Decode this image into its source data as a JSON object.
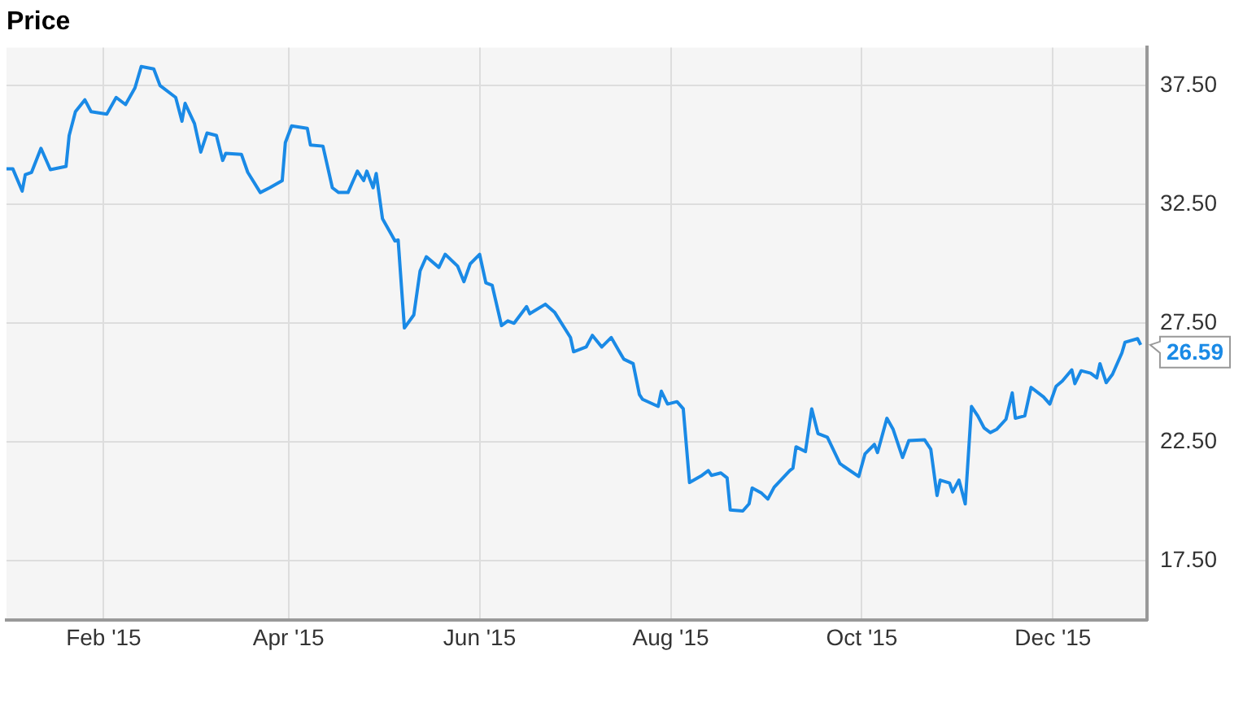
{
  "chart_data": {
    "type": "line",
    "title": "Price",
    "x": [
      "2015-01-01",
      "2015-01-03",
      "2015-01-06",
      "2015-01-07",
      "2015-01-09",
      "2015-01-12",
      "2015-01-15",
      "2015-01-20",
      "2015-01-21",
      "2015-01-23",
      "2015-01-26",
      "2015-01-28",
      "2015-02-02",
      "2015-02-05",
      "2015-02-08",
      "2015-02-11",
      "2015-02-13",
      "2015-02-17",
      "2015-02-19",
      "2015-02-24",
      "2015-02-26",
      "2015-02-27",
      "2015-03-02",
      "2015-03-04",
      "2015-03-06",
      "2015-03-09",
      "2015-03-11",
      "2015-03-12",
      "2015-03-17",
      "2015-03-19",
      "2015-03-23",
      "2015-03-26",
      "2015-03-30",
      "2015-03-31",
      "2015-04-02",
      "2015-04-07",
      "2015-04-08",
      "2015-04-12",
      "2015-04-15",
      "2015-04-17",
      "2015-04-20",
      "2015-04-23",
      "2015-04-25",
      "2015-04-26",
      "2015-04-28",
      "2015-04-29",
      "2015-05-01",
      "2015-05-04",
      "2015-05-05",
      "2015-05-06",
      "2015-05-08",
      "2015-05-11",
      "2015-05-13",
      "2015-05-15",
      "2015-05-19",
      "2015-05-21",
      "2015-05-25",
      "2015-05-27",
      "2015-05-29",
      "2015-06-01",
      "2015-06-03",
      "2015-06-05",
      "2015-06-08",
      "2015-06-10",
      "2015-06-12",
      "2015-06-16",
      "2015-06-17",
      "2015-06-22",
      "2015-06-25",
      "2015-06-30",
      "2015-07-01",
      "2015-07-05",
      "2015-07-07",
      "2015-07-10",
      "2015-07-13",
      "2015-07-17",
      "2015-07-20",
      "2015-07-22",
      "2015-07-23",
      "2015-07-28",
      "2015-07-29",
      "2015-07-31",
      "2015-08-03",
      "2015-08-05",
      "2015-08-07",
      "2015-08-11",
      "2015-08-13",
      "2015-08-14",
      "2015-08-17",
      "2015-08-19",
      "2015-08-20",
      "2015-08-24",
      "2015-08-26",
      "2015-08-27",
      "2015-08-30",
      "2015-09-01",
      "2015-09-03",
      "2015-09-08",
      "2015-09-09",
      "2015-09-10",
      "2015-09-13",
      "2015-09-15",
      "2015-09-17",
      "2015-09-20",
      "2015-09-24",
      "2015-09-25",
      "2015-09-30",
      "2015-10-02",
      "2015-10-05",
      "2015-10-06",
      "2015-10-09",
      "2015-10-11",
      "2015-10-14",
      "2015-10-16",
      "2015-10-21",
      "2015-10-23",
      "2015-10-25",
      "2015-10-26",
      "2015-10-29",
      "2015-10-30",
      "2015-11-01",
      "2015-11-03",
      "2015-11-05",
      "2015-11-07",
      "2015-11-09",
      "2015-11-11",
      "2015-11-13",
      "2015-11-16",
      "2015-11-18",
      "2015-11-19",
      "2015-11-22",
      "2015-11-24",
      "2015-11-28",
      "2015-11-30",
      "2015-12-02",
      "2015-12-04",
      "2015-12-07",
      "2015-12-08",
      "2015-12-10",
      "2015-12-13",
      "2015-12-15",
      "2015-12-16",
      "2015-12-18",
      "2015-12-20",
      "2015-12-23",
      "2015-12-24",
      "2015-12-28",
      "2015-12-29"
    ],
    "series": [
      {
        "color": "#1a8ae6",
        "values": [
          34.0,
          34.0,
          33.06,
          33.75,
          33.85,
          34.86,
          33.96,
          34.1,
          35.4,
          36.4,
          36.9,
          36.4,
          36.3,
          37.0,
          36.7,
          37.4,
          38.3,
          38.2,
          37.5,
          37.0,
          36.0,
          36.75,
          35.9,
          34.7,
          35.5,
          35.4,
          34.35,
          34.65,
          34.6,
          33.85,
          33.0,
          33.2,
          33.5,
          35.1,
          35.8,
          35.7,
          35.0,
          34.95,
          33.2,
          33.0,
          33.0,
          33.9,
          33.5,
          33.9,
          33.2,
          33.8,
          31.9,
          31.2,
          30.96,
          31.0,
          27.3,
          27.85,
          29.7,
          30.3,
          29.85,
          30.4,
          29.9,
          29.25,
          30.0,
          30.4,
          29.2,
          29.1,
          27.4,
          27.6,
          27.5,
          28.2,
          27.9,
          28.3,
          27.95,
          26.9,
          26.3,
          26.5,
          26.99,
          26.5,
          26.9,
          25.99,
          25.8,
          24.5,
          24.3,
          24.0,
          24.64,
          24.1,
          24.2,
          23.9,
          20.8,
          21.1,
          21.3,
          21.1,
          21.2,
          20.99,
          19.64,
          19.6,
          19.9,
          20.57,
          20.35,
          20.1,
          20.6,
          21.3,
          21.4,
          22.3,
          22.1,
          23.9,
          22.86,
          22.7,
          21.6,
          21.5,
          21.05,
          22.0,
          22.4,
          22.06,
          23.5,
          23.03,
          21.85,
          22.56,
          22.6,
          22.2,
          20.25,
          20.9,
          20.78,
          20.4,
          20.9,
          19.9,
          24.0,
          23.6,
          23.1,
          22.9,
          23.03,
          23.46,
          24.57,
          23.5,
          23.6,
          24.8,
          24.4,
          24.1,
          24.85,
          25.07,
          25.54,
          24.96,
          25.5,
          25.4,
          25.2,
          25.8,
          25.0,
          25.35,
          26.25,
          26.7,
          26.85,
          26.59
        ],
        "value_labels": [
          null,
          null,
          null,
          null,
          null,
          null,
          null,
          null,
          null,
          null,
          null,
          null,
          null,
          null,
          null,
          null,
          null,
          null,
          null,
          null,
          null,
          null,
          null,
          null,
          null,
          null,
          null,
          null,
          null,
          null,
          null,
          null,
          null,
          null,
          null,
          null,
          null,
          null,
          null,
          null,
          null,
          null,
          null,
          null,
          null,
          null,
          null,
          null,
          null,
          null,
          null,
          null,
          null,
          null,
          null,
          null,
          null,
          null,
          null,
          null,
          null,
          null,
          null,
          null,
          null,
          null,
          null,
          null,
          null,
          null,
          null,
          null,
          null,
          null,
          null,
          null,
          null,
          null,
          null,
          null,
          null,
          null,
          null,
          null,
          null,
          null,
          null,
          null,
          null,
          null,
          null,
          null,
          null,
          null,
          null,
          null,
          null,
          null,
          null,
          null,
          null,
          null,
          null,
          null,
          null,
          null,
          null,
          null,
          null,
          null,
          null,
          null,
          null,
          null,
          null,
          null,
          null,
          null,
          null,
          null,
          null,
          null,
          null,
          null,
          null,
          null,
          null,
          null,
          null,
          null,
          null,
          null,
          null,
          null,
          null,
          null,
          null,
          null,
          null,
          null,
          null,
          null,
          null,
          null,
          null,
          null,
          null,
          "26.59"
        ]
      }
    ],
    "xlim": [
      "2015-01-01",
      "2015-12-31"
    ],
    "xticks": [
      {
        "value": "2015-02-01",
        "label": "Feb '15"
      },
      {
        "value": "2015-04-01",
        "label": "Apr '15"
      },
      {
        "value": "2015-06-01",
        "label": "Jun '15"
      },
      {
        "value": "2015-08-01",
        "label": "Aug '15"
      },
      {
        "value": "2015-10-01",
        "label": "Oct '15"
      },
      {
        "value": "2015-12-01",
        "label": "Dec '15"
      }
    ],
    "ylim": [
      15,
      39.1
    ],
    "yticks": [
      {
        "value": 17.5,
        "label": "17.50"
      },
      {
        "value": 22.5,
        "label": "22.50"
      },
      {
        "value": 27.5,
        "label": "27.50"
      },
      {
        "value": 32.5,
        "label": "32.50"
      },
      {
        "value": 37.5,
        "label": "37.50"
      }
    ],
    "grid": true,
    "legend": false,
    "marker": "none",
    "line_style": "solid"
  }
}
